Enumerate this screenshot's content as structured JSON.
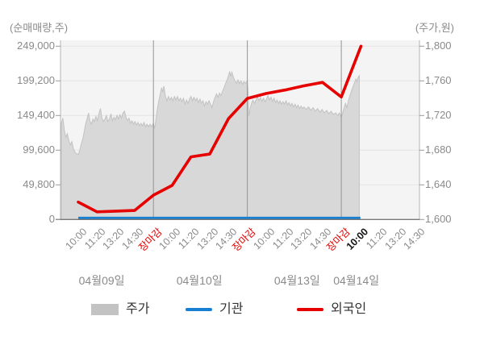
{
  "header": {
    "left_axis_title": "(순매매량,주)",
    "right_axis_title": "(주가,원)"
  },
  "legend": {
    "items": [
      {
        "label": "주가",
        "type": "area"
      },
      {
        "label": "기관",
        "type": "line"
      },
      {
        "label": "외국인",
        "type": "line"
      }
    ]
  },
  "colors": {
    "red": "#e60000",
    "blue": "#1780d2",
    "area": "#d8d8d8",
    "area_border": "#c2c2c2",
    "plot_bg": "#f4f4f4",
    "grid": "#e4e4e4",
    "day_grid": "#949494",
    "axis_side": "#b3b3b3",
    "axis_bottom": "#787878",
    "tick_stub": "#9b9b9b",
    "tick_text": "#8a8a8a",
    "close_text": "#e60000",
    "current_text": "#141414",
    "legend_text": "#333333",
    "swatch": "#c3c3c3"
  },
  "chart_data": {
    "type": "area",
    "title": "",
    "left_axis": {
      "title": "(순매매량,주)",
      "tick_labels": [
        "249,000",
        "199,200",
        "149,400",
        "99,600",
        "49,800",
        "0"
      ],
      "tick_values": [
        249000,
        199200,
        149400,
        99600,
        49800,
        0
      ],
      "range": [
        0,
        249000
      ]
    },
    "right_axis": {
      "title": "(주가,원)",
      "tick_labels": [
        "1,800",
        "1,760",
        "1,720",
        "1,680",
        "1,640",
        "1,600"
      ],
      "tick_values": [
        1800,
        1760,
        1720,
        1680,
        1640,
        1600
      ],
      "range": [
        1600,
        1800
      ]
    },
    "x_ticks": [
      {
        "label": "10:00",
        "style": "normal"
      },
      {
        "label": "11:20",
        "style": "normal"
      },
      {
        "label": "13:20",
        "style": "normal"
      },
      {
        "label": "14:30",
        "style": "normal"
      },
      {
        "label": "장마감",
        "style": "close"
      },
      {
        "label": "10:00",
        "style": "normal"
      },
      {
        "label": "11:20",
        "style": "normal"
      },
      {
        "label": "13:20",
        "style": "normal"
      },
      {
        "label": "14:30",
        "style": "normal"
      },
      {
        "label": "장마감",
        "style": "close"
      },
      {
        "label": "10:00",
        "style": "normal"
      },
      {
        "label": "11:20",
        "style": "normal"
      },
      {
        "label": "13:20",
        "style": "normal"
      },
      {
        "label": "14:30",
        "style": "normal"
      },
      {
        "label": "장마감",
        "style": "close"
      },
      {
        "label": "10:00",
        "style": "current"
      },
      {
        "label": "11:20",
        "style": "normal"
      },
      {
        "label": "13:20",
        "style": "normal"
      },
      {
        "label": "14:30",
        "style": "normal"
      }
    ],
    "day_labels": [
      {
        "label": "04월09일",
        "i": 1.25
      },
      {
        "label": "04월10일",
        "i": 6.45
      },
      {
        "label": "04월13일",
        "i": 11.65
      },
      {
        "label": "04월14일",
        "i": 14.8
      }
    ],
    "series": [
      {
        "name": "주가",
        "axis": "right",
        "kind": "area",
        "points": [
          [
            -0.9,
            1711
          ],
          [
            -0.82,
            1717
          ],
          [
            -0.74,
            1703
          ],
          [
            -0.66,
            1695
          ],
          [
            -0.58,
            1699
          ],
          [
            -0.5,
            1691
          ],
          [
            -0.42,
            1686
          ],
          [
            -0.34,
            1690
          ],
          [
            -0.26,
            1682
          ],
          [
            -0.18,
            1678
          ],
          [
            -0.1,
            1676
          ],
          [
            0.0,
            1675
          ],
          [
            0.08,
            1680
          ],
          [
            0.16,
            1687
          ],
          [
            0.24,
            1693
          ],
          [
            0.32,
            1702
          ],
          [
            0.4,
            1711
          ],
          [
            0.48,
            1717
          ],
          [
            0.55,
            1723
          ],
          [
            0.62,
            1714
          ],
          [
            0.7,
            1710
          ],
          [
            0.78,
            1716
          ],
          [
            0.86,
            1713
          ],
          [
            0.94,
            1719
          ],
          [
            1.02,
            1714
          ],
          [
            1.1,
            1722
          ],
          [
            1.18,
            1728
          ],
          [
            1.26,
            1717
          ],
          [
            1.34,
            1713
          ],
          [
            1.42,
            1716
          ],
          [
            1.5,
            1720
          ],
          [
            1.58,
            1713
          ],
          [
            1.66,
            1716
          ],
          [
            1.74,
            1722
          ],
          [
            1.82,
            1714
          ],
          [
            1.9,
            1718
          ],
          [
            1.98,
            1715
          ],
          [
            2.06,
            1720
          ],
          [
            2.14,
            1716
          ],
          [
            2.22,
            1721
          ],
          [
            2.3,
            1717
          ],
          [
            2.38,
            1723
          ],
          [
            2.46,
            1725
          ],
          [
            2.54,
            1718
          ],
          [
            2.62,
            1714
          ],
          [
            2.7,
            1717
          ],
          [
            2.78,
            1711
          ],
          [
            2.86,
            1714
          ],
          [
            2.94,
            1710
          ],
          [
            3.02,
            1713
          ],
          [
            3.1,
            1709
          ],
          [
            3.18,
            1712
          ],
          [
            3.26,
            1708
          ],
          [
            3.34,
            1711
          ],
          [
            3.42,
            1708
          ],
          [
            3.5,
            1712
          ],
          [
            3.58,
            1707
          ],
          [
            3.66,
            1710
          ],
          [
            3.74,
            1707
          ],
          [
            3.82,
            1710
          ],
          [
            3.9,
            1707
          ],
          [
            4.0,
            1711
          ],
          [
            4.06,
            1705
          ],
          [
            4.12,
            1713
          ],
          [
            4.2,
            1726
          ],
          [
            4.28,
            1736
          ],
          [
            4.36,
            1744
          ],
          [
            4.44,
            1752
          ],
          [
            4.5,
            1747
          ],
          [
            4.56,
            1754
          ],
          [
            4.64,
            1742
          ],
          [
            4.72,
            1737
          ],
          [
            4.8,
            1742
          ],
          [
            4.88,
            1738
          ],
          [
            4.96,
            1741
          ],
          [
            5.04,
            1737
          ],
          [
            5.12,
            1742
          ],
          [
            5.2,
            1738
          ],
          [
            5.28,
            1742
          ],
          [
            5.36,
            1737
          ],
          [
            5.44,
            1740
          ],
          [
            5.52,
            1736
          ],
          [
            5.6,
            1740
          ],
          [
            5.68,
            1733
          ],
          [
            5.76,
            1738
          ],
          [
            5.84,
            1734
          ],
          [
            5.92,
            1739
          ],
          [
            6.0,
            1742
          ],
          [
            6.08,
            1737
          ],
          [
            6.16,
            1741
          ],
          [
            6.24,
            1737
          ],
          [
            6.32,
            1740
          ],
          [
            6.4,
            1735
          ],
          [
            6.48,
            1739
          ],
          [
            6.56,
            1734
          ],
          [
            6.64,
            1737
          ],
          [
            6.72,
            1731
          ],
          [
            6.8,
            1736
          ],
          [
            6.88,
            1733
          ],
          [
            6.96,
            1737
          ],
          [
            7.04,
            1733
          ],
          [
            7.12,
            1729
          ],
          [
            7.2,
            1736
          ],
          [
            7.28,
            1741
          ],
          [
            7.36,
            1745
          ],
          [
            7.44,
            1741
          ],
          [
            7.52,
            1746
          ],
          [
            7.6,
            1743
          ],
          [
            7.68,
            1748
          ],
          [
            7.76,
            1752
          ],
          [
            7.84,
            1757
          ],
          [
            7.92,
            1761
          ],
          [
            8.0,
            1766
          ],
          [
            8.06,
            1771
          ],
          [
            8.12,
            1765
          ],
          [
            8.18,
            1770
          ],
          [
            8.26,
            1764
          ],
          [
            8.34,
            1760
          ],
          [
            8.42,
            1757
          ],
          [
            8.5,
            1761
          ],
          [
            8.58,
            1757
          ],
          [
            8.66,
            1760
          ],
          [
            8.74,
            1756
          ],
          [
            8.82,
            1759
          ],
          [
            8.9,
            1757
          ],
          [
            9.0,
            1760
          ],
          [
            9.04,
            1747
          ],
          [
            9.08,
            1719
          ],
          [
            9.14,
            1727
          ],
          [
            9.22,
            1734
          ],
          [
            9.3,
            1738
          ],
          [
            9.38,
            1734
          ],
          [
            9.46,
            1738
          ],
          [
            9.54,
            1742
          ],
          [
            9.62,
            1737
          ],
          [
            9.7,
            1741
          ],
          [
            9.78,
            1736
          ],
          [
            9.86,
            1740
          ],
          [
            9.94,
            1736
          ],
          [
            10.02,
            1739
          ],
          [
            10.1,
            1743
          ],
          [
            10.18,
            1738
          ],
          [
            10.26,
            1741
          ],
          [
            10.34,
            1736
          ],
          [
            10.42,
            1740
          ],
          [
            10.5,
            1735
          ],
          [
            10.58,
            1738
          ],
          [
            10.66,
            1734
          ],
          [
            10.74,
            1737
          ],
          [
            10.82,
            1733
          ],
          [
            10.9,
            1736
          ],
          [
            10.98,
            1733
          ],
          [
            11.06,
            1737
          ],
          [
            11.14,
            1732
          ],
          [
            11.22,
            1735
          ],
          [
            11.3,
            1731
          ],
          [
            11.38,
            1734
          ],
          [
            11.46,
            1730
          ],
          [
            11.54,
            1733
          ],
          [
            11.62,
            1729
          ],
          [
            11.7,
            1732
          ],
          [
            11.78,
            1728
          ],
          [
            11.86,
            1731
          ],
          [
            11.94,
            1728
          ],
          [
            12.02,
            1730
          ],
          [
            12.14,
            1727
          ],
          [
            12.26,
            1730
          ],
          [
            12.38,
            1726
          ],
          [
            12.5,
            1729
          ],
          [
            12.62,
            1725
          ],
          [
            12.74,
            1728
          ],
          [
            12.86,
            1724
          ],
          [
            12.98,
            1727
          ],
          [
            13.1,
            1723
          ],
          [
            13.22,
            1726
          ],
          [
            13.34,
            1722
          ],
          [
            13.46,
            1725
          ],
          [
            13.58,
            1721
          ],
          [
            13.7,
            1723
          ],
          [
            13.82,
            1720
          ],
          [
            13.9,
            1723
          ],
          [
            14.0,
            1718
          ],
          [
            14.06,
            1722
          ],
          [
            14.14,
            1728
          ],
          [
            14.22,
            1734
          ],
          [
            14.3,
            1729
          ],
          [
            14.38,
            1737
          ],
          [
            14.46,
            1743
          ],
          [
            14.54,
            1748
          ],
          [
            14.62,
            1753
          ],
          [
            14.7,
            1758
          ],
          [
            14.78,
            1762
          ],
          [
            14.84,
            1759
          ],
          [
            14.9,
            1764
          ],
          [
            14.96,
            1766
          ]
        ]
      },
      {
        "name": "기관",
        "axis": "left",
        "kind": "line",
        "points": [
          [
            0,
            2000
          ],
          [
            15.02,
            2000
          ]
        ]
      },
      {
        "name": "외국인",
        "axis": "left",
        "kind": "line",
        "points": [
          [
            0,
            25000
          ],
          [
            1,
            11000
          ],
          [
            2,
            12000
          ],
          [
            3,
            13000
          ],
          [
            4,
            35000
          ],
          [
            5,
            49000
          ],
          [
            6,
            90000
          ],
          [
            7,
            94000
          ],
          [
            8,
            145000
          ],
          [
            9,
            174000
          ],
          [
            10,
            181000
          ],
          [
            11,
            186000
          ],
          [
            12,
            192000
          ],
          [
            13,
            197000
          ],
          [
            14,
            176000
          ],
          [
            15.05,
            249000
          ]
        ]
      }
    ]
  }
}
